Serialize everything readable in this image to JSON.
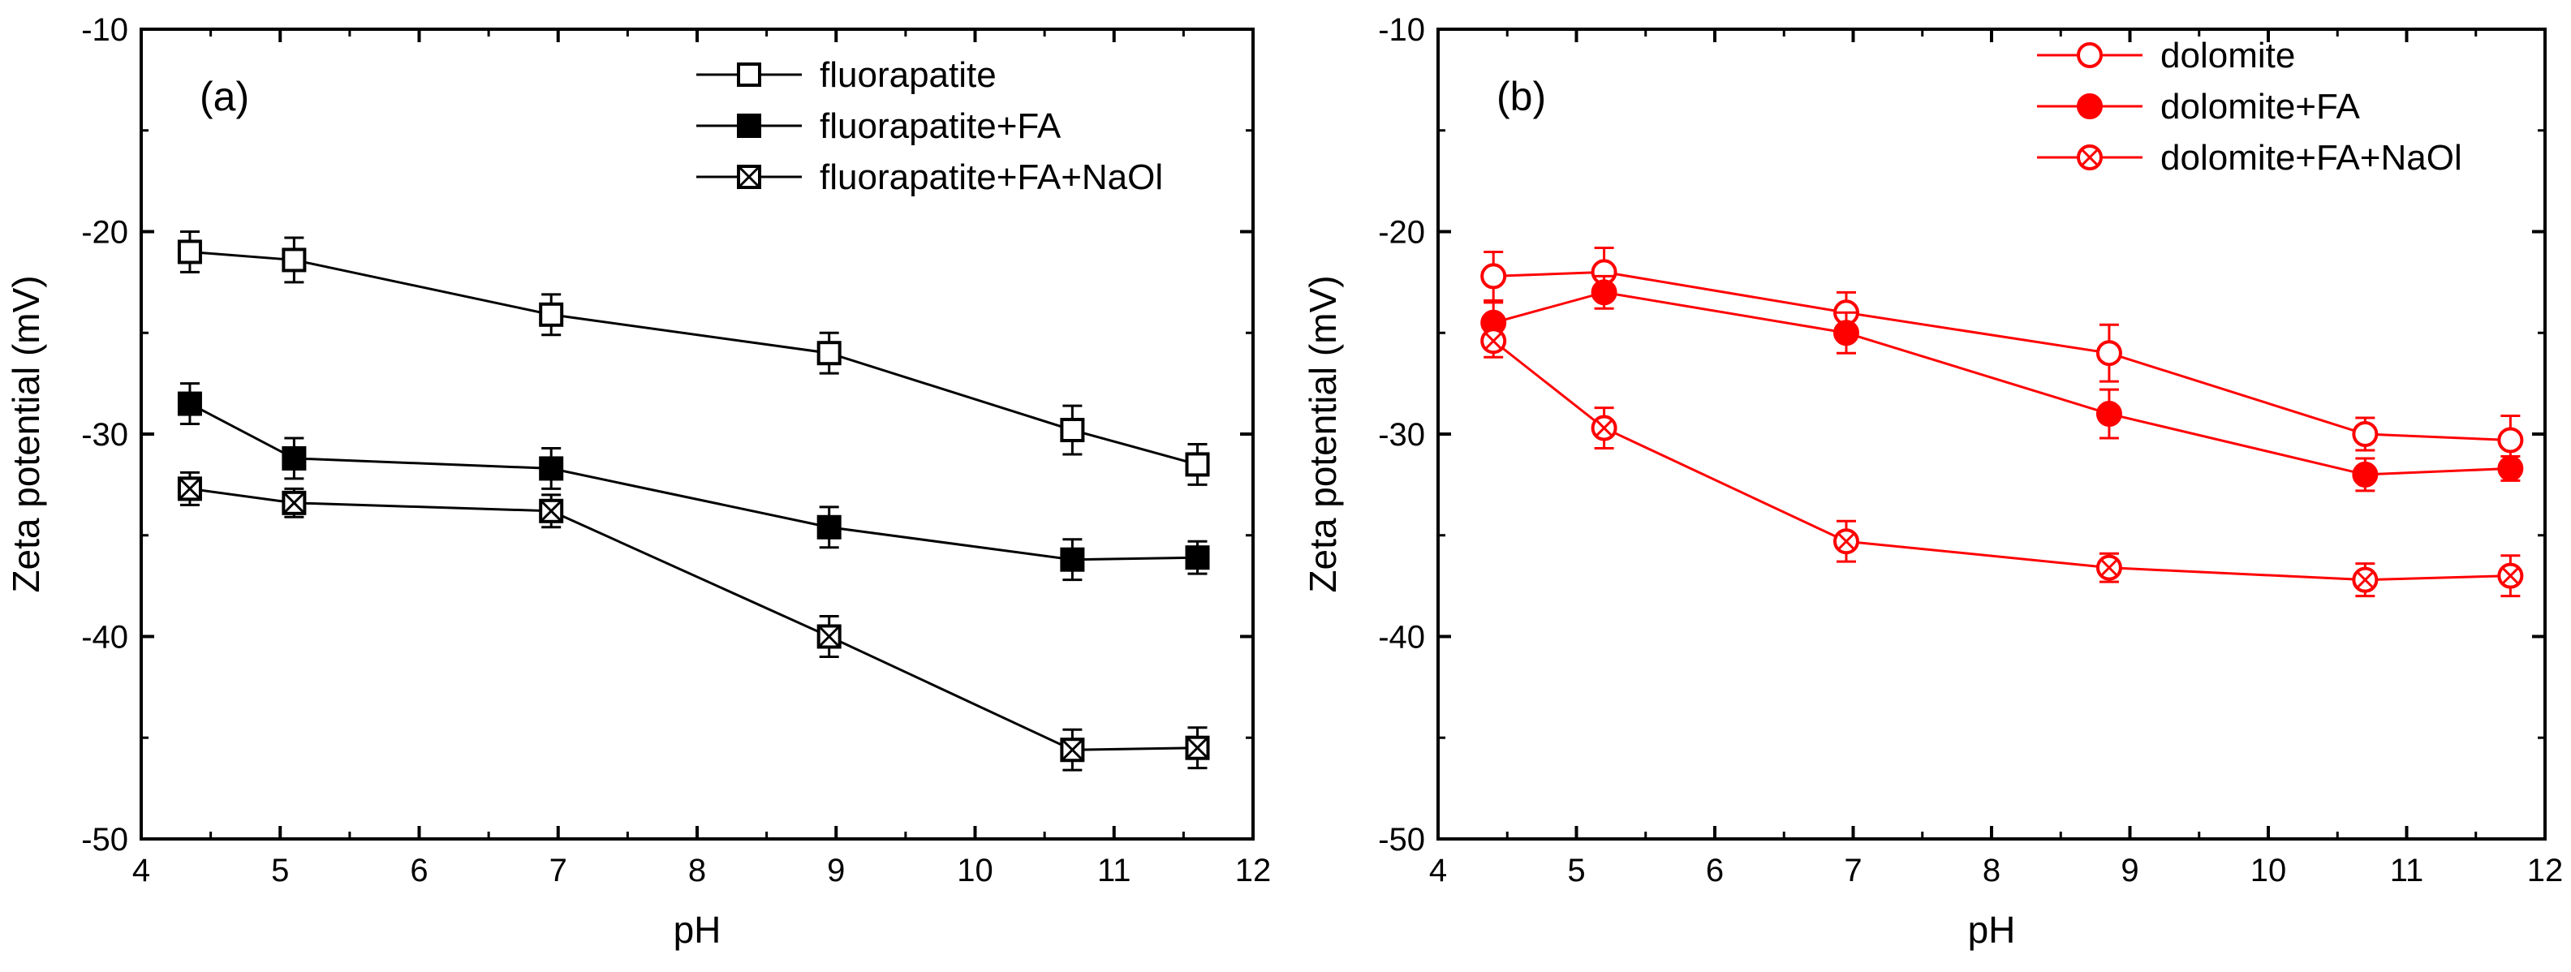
{
  "chart_data": [
    {
      "type": "line",
      "panel_label": "(a)",
      "xlabel": "pH",
      "ylabel": "Zeta potential (mV)",
      "xlim": [
        4,
        12
      ],
      "ylim": [
        -50,
        -10
      ],
      "xticks": [
        4,
        5,
        6,
        7,
        8,
        9,
        10,
        11,
        12
      ],
      "yticks": [
        -50,
        -40,
        -30,
        -20,
        -10
      ],
      "legend_position": "top-right",
      "series": [
        {
          "name": "fluorapatite",
          "color": "#000000",
          "marker": "open-square",
          "x": [
            4.35,
            5.1,
            6.95,
            8.95,
            10.7,
            11.6
          ],
          "y": [
            -21.0,
            -21.4,
            -24.1,
            -26.0,
            -29.8,
            -31.5
          ],
          "err": [
            1.0,
            1.1,
            1.0,
            1.0,
            1.2,
            1.0
          ]
        },
        {
          "name": "fluorapatite+FA",
          "color": "#000000",
          "marker": "filled-square",
          "x": [
            4.35,
            5.1,
            6.95,
            8.95,
            10.7,
            11.6
          ],
          "y": [
            -28.5,
            -31.2,
            -31.7,
            -34.6,
            -36.2,
            -36.1
          ],
          "err": [
            1.0,
            1.0,
            1.0,
            1.0,
            1.0,
            0.8
          ]
        },
        {
          "name": "fluorapatite+FA+NaOl",
          "color": "#000000",
          "marker": "crossed-square",
          "x": [
            4.35,
            5.1,
            6.95,
            8.95,
            10.7,
            11.6
          ],
          "y": [
            -32.7,
            -33.4,
            -33.8,
            -40.0,
            -45.6,
            -45.5
          ],
          "err": [
            0.8,
            0.7,
            0.8,
            1.0,
            1.0,
            1.0
          ]
        }
      ]
    },
    {
      "type": "line",
      "panel_label": "(b)",
      "xlabel": "pH",
      "ylabel": "Zeta potential (mV)",
      "xlim": [
        4,
        12
      ],
      "ylim": [
        -50,
        -10
      ],
      "xticks": [
        4,
        5,
        6,
        7,
        8,
        9,
        10,
        11,
        12
      ],
      "yticks": [
        -50,
        -40,
        -30,
        -20,
        -10
      ],
      "legend_position": "top-right",
      "series": [
        {
          "name": "dolomite",
          "color": "#ff0000",
          "marker": "open-circle",
          "x": [
            4.4,
            5.2,
            6.95,
            8.85,
            10.7,
            11.75
          ],
          "y": [
            -22.2,
            -22.0,
            -24.0,
            -26.0,
            -30.0,
            -30.3
          ],
          "err": [
            1.2,
            1.2,
            1.0,
            1.4,
            0.8,
            1.2
          ]
        },
        {
          "name": "dolomite+FA",
          "color": "#ff0000",
          "marker": "filled-circle",
          "x": [
            4.4,
            5.2,
            6.95,
            8.85,
            10.7,
            11.75
          ],
          "y": [
            -24.5,
            -23.0,
            -25.0,
            -29.0,
            -32.0,
            -31.7
          ],
          "err": [
            1.0,
            0.8,
            1.0,
            1.2,
            0.8,
            0.6
          ]
        },
        {
          "name": "dolomite+FA+NaOl",
          "color": "#ff0000",
          "marker": "crossed-circle",
          "x": [
            4.4,
            5.2,
            6.95,
            8.85,
            10.7,
            11.75
          ],
          "y": [
            -25.4,
            -29.7,
            -35.3,
            -36.6,
            -37.2,
            -37.0
          ],
          "err": [
            0.8,
            1.0,
            1.0,
            0.7,
            0.8,
            1.0
          ]
        }
      ]
    }
  ]
}
